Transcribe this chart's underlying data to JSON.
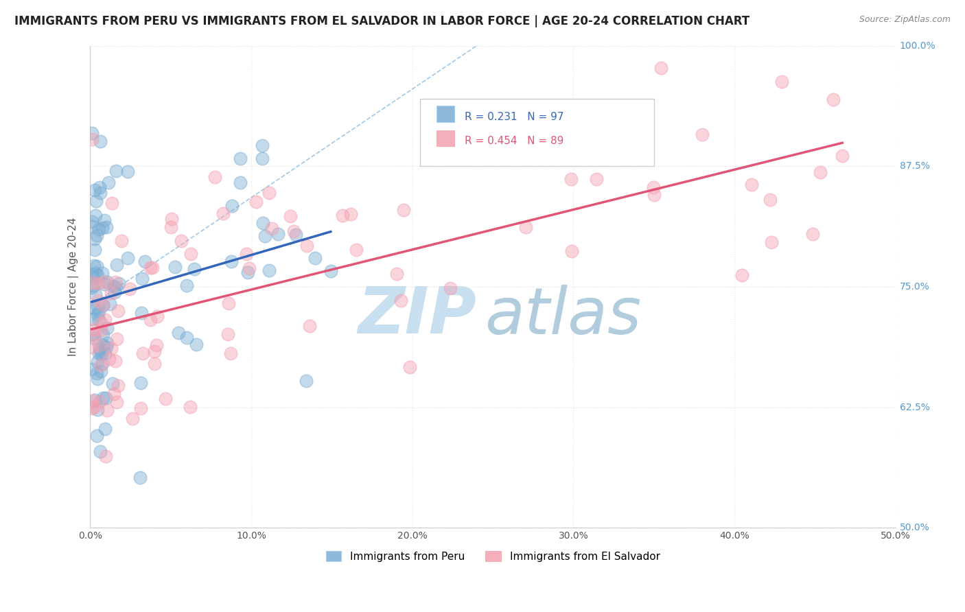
{
  "title": "IMMIGRANTS FROM PERU VS IMMIGRANTS FROM EL SALVADOR IN LABOR FORCE | AGE 20-24 CORRELATION CHART",
  "source": "Source: ZipAtlas.com",
  "ylabel": "In Labor Force | Age 20-24",
  "xlim": [
    0.0,
    0.5
  ],
  "ylim": [
    0.5,
    1.0
  ],
  "xticks": [
    0.0,
    0.1,
    0.2,
    0.3,
    0.4,
    0.5
  ],
  "xticklabels": [
    "0.0%",
    "10.0%",
    "20.0%",
    "30.0%",
    "40.0%",
    "50.0%"
  ],
  "yticks": [
    0.5,
    0.625,
    0.75,
    0.875,
    1.0
  ],
  "yticklabels": [
    "50.0%",
    "62.5%",
    "75.0%",
    "87.5%",
    "100.0%"
  ],
  "peru_color": "#7aadd4",
  "salvador_color": "#f4a0b0",
  "peru_line_color": "#3366bb",
  "salvador_line_color": "#e05575",
  "peru_R": 0.231,
  "peru_N": 97,
  "salvador_R": 0.454,
  "salvador_N": 89,
  "legend_peru_label": "Immigrants from Peru",
  "legend_salvador_label": "Immigrants from El Salvador",
  "watermark_zip": "ZIP",
  "watermark_atlas": "atlas",
  "watermark_color_zip": "#c8dff0",
  "watermark_color_atlas": "#b0ccdd",
  "background_color": "#ffffff",
  "grid_color": "#e0e0e0",
  "title_fontsize": 12,
  "axis_label_fontsize": 11,
  "tick_fontsize": 10,
  "ytick_color": "#5599cc",
  "xtick_color": "#555555"
}
